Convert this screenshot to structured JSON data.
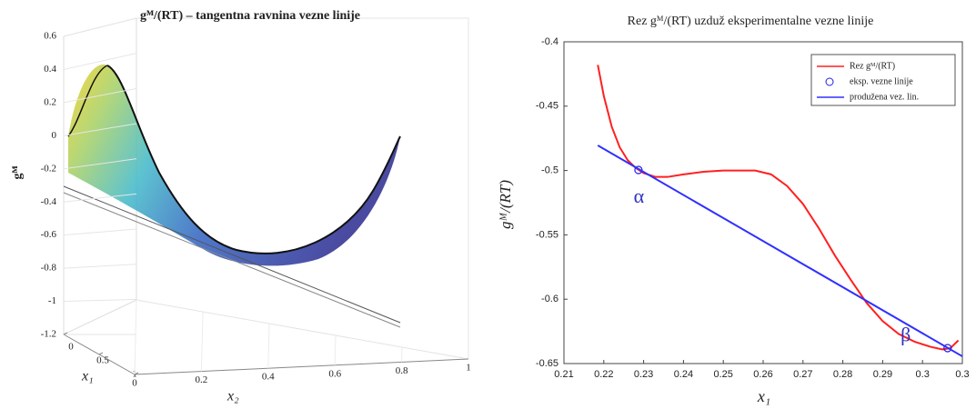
{
  "chart_data": [
    {
      "type": "surface3d",
      "title": "gᴹ/(RT) – tangentna ravnina vezne linije",
      "zlabel": "gᴹ",
      "xlabel": "x₁",
      "ylabel": "x₂",
      "zlim": [
        -1.2,
        0.6
      ],
      "zticks": [
        0.6,
        0.4,
        0.2,
        0,
        -0.2,
        -0.4,
        -0.6,
        -0.8,
        -1,
        -1.2
      ],
      "xlim": [
        0,
        1
      ],
      "xticks": [
        0,
        0.5,
        1
      ],
      "ylim": [
        0,
        1
      ],
      "yticks": [
        0,
        0.2,
        0.4,
        0.6,
        0.8,
        1
      ]
    },
    {
      "type": "line",
      "title": "Rez gᴹ/(RT) uzduž eksperimentalne vezne linije",
      "xlabel": "x₁",
      "ylabel": "gᴹ/(RT)",
      "xlim": [
        0.21,
        0.31
      ],
      "xticks": [
        0.21,
        0.22,
        0.23,
        0.24,
        0.25,
        0.26,
        0.27,
        0.28,
        0.29,
        0.3,
        {
          "value": 0.31,
          "label": "0.3"
        }
      ],
      "ylim": [
        -0.65,
        -0.4
      ],
      "yticks": [
        -0.4,
        -0.45,
        -0.5,
        -0.55,
        -0.6,
        -0.65
      ],
      "legend": "upper right",
      "series": [
        {
          "name": "Rez gᴹ/(RT)",
          "color": "#ff2020",
          "style": "line",
          "x": [
            0.2185,
            0.22,
            0.222,
            0.224,
            0.226,
            0.228,
            0.23,
            0.233,
            0.236,
            0.24,
            0.245,
            0.25,
            0.255,
            0.258,
            0.262,
            0.266,
            0.27,
            0.274,
            0.278,
            0.282,
            0.286,
            0.29,
            0.294,
            0.298,
            0.302,
            0.305,
            0.307,
            0.309
          ],
          "values": [
            -0.418,
            -0.442,
            -0.466,
            -0.482,
            -0.492,
            -0.498,
            -0.502,
            -0.505,
            -0.505,
            -0.503,
            -0.501,
            -0.5,
            -0.5,
            -0.5,
            -0.503,
            -0.512,
            -0.526,
            -0.545,
            -0.566,
            -0.585,
            -0.603,
            -0.617,
            -0.627,
            -0.633,
            -0.637,
            -0.639,
            -0.638,
            -0.632
          ]
        },
        {
          "name": "eksp. vezne linije",
          "color": "#2020e0",
          "style": "marker",
          "x": [
            0.2287,
            0.3063
          ],
          "values": [
            -0.4996,
            -0.638
          ]
        },
        {
          "name": "produžena vez. lin.",
          "color": "#3030ff",
          "style": "line",
          "x": [
            0.2185,
            0.31
          ],
          "values": [
            -0.4805,
            -0.6444
          ]
        }
      ],
      "annotations": [
        {
          "text": "α",
          "x": 0.2275,
          "y": -0.5215
        },
        {
          "text": "β",
          "x": 0.2945,
          "y": -0.629
        }
      ]
    }
  ]
}
